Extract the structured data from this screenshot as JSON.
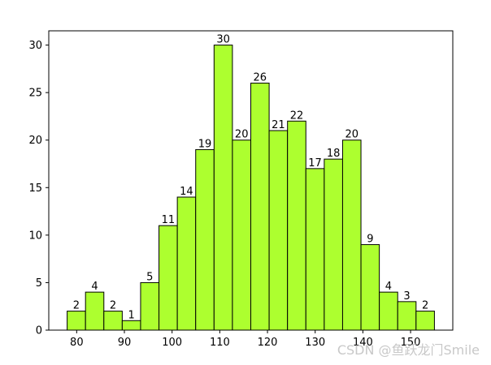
{
  "chart_data": {
    "type": "bar",
    "bar_style": "histogram",
    "bar_color": "#adff2f",
    "edge_color": "#000000",
    "bins": [
      {
        "x0": 78.0,
        "x1": 81.85,
        "value": 2
      },
      {
        "x0": 81.85,
        "x1": 85.7,
        "value": 4
      },
      {
        "x0": 85.7,
        "x1": 89.55,
        "value": 2
      },
      {
        "x0": 89.55,
        "x1": 93.4,
        "value": 1
      },
      {
        "x0": 93.4,
        "x1": 97.25,
        "value": 5
      },
      {
        "x0": 97.25,
        "x1": 101.1,
        "value": 11
      },
      {
        "x0": 101.1,
        "x1": 104.95,
        "value": 14
      },
      {
        "x0": 104.95,
        "x1": 108.8,
        "value": 19
      },
      {
        "x0": 108.8,
        "x1": 112.65,
        "value": 30
      },
      {
        "x0": 112.65,
        "x1": 116.5,
        "value": 20
      },
      {
        "x0": 116.5,
        "x1": 120.35,
        "value": 26
      },
      {
        "x0": 120.35,
        "x1": 124.2,
        "value": 21
      },
      {
        "x0": 124.2,
        "x1": 128.05,
        "value": 22
      },
      {
        "x0": 128.05,
        "x1": 131.9,
        "value": 17
      },
      {
        "x0": 131.9,
        "x1": 135.75,
        "value": 18
      },
      {
        "x0": 135.75,
        "x1": 139.6,
        "value": 20
      },
      {
        "x0": 139.6,
        "x1": 143.45,
        "value": 9
      },
      {
        "x0": 143.45,
        "x1": 147.3,
        "value": 4
      },
      {
        "x0": 147.3,
        "x1": 151.15,
        "value": 3
      },
      {
        "x0": 151.15,
        "x1": 155.0,
        "value": 2
      }
    ],
    "xlim": [
      74.15,
      158.85
    ],
    "ylim": [
      0,
      31.5
    ],
    "xticks": [
      80,
      90,
      100,
      110,
      120,
      130,
      140,
      150
    ],
    "yticks": [
      0,
      5,
      10,
      15,
      20,
      25,
      30
    ],
    "title": "",
    "xlabel": "",
    "ylabel": "",
    "grid": false
  },
  "watermark": "CSDN @鱼跃龙门Smile"
}
